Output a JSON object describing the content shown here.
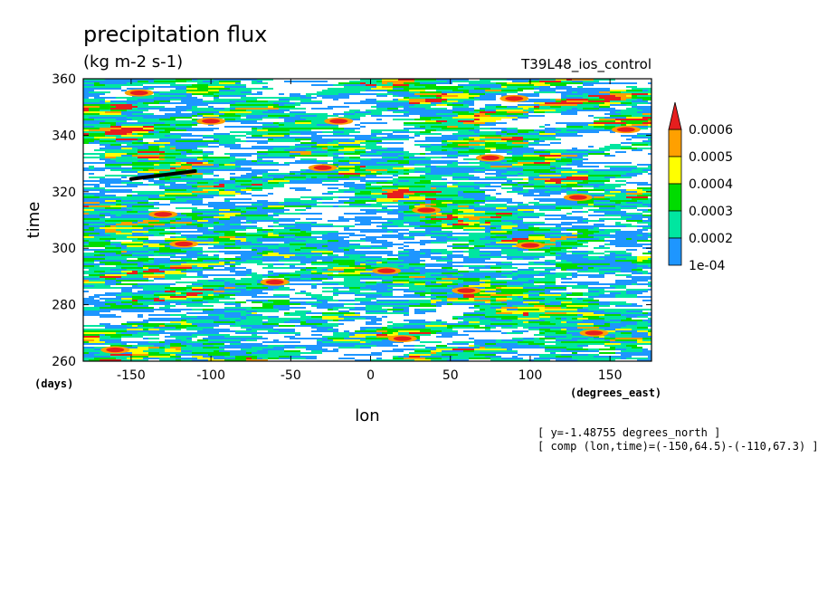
{
  "chart_data": {
    "type": "heatmap",
    "title": "precipitation flux",
    "units": "(kg m-2 s-1)",
    "run_label": "T39L48_ios_control",
    "xlabel": "lon",
    "xunit": "(degrees_east)",
    "ylabel": "time",
    "yunit": "(days)",
    "xlim": [
      -180,
      176
    ],
    "ylim": [
      260,
      360
    ],
    "x_ticks": [
      -150,
      -100,
      -50,
      0,
      50,
      100,
      150
    ],
    "y_ticks": [
      260,
      280,
      300,
      320,
      340,
      360
    ],
    "levels": [
      0.0001,
      0.0002,
      0.0003,
      0.0004,
      0.0005,
      0.0006
    ],
    "colorbar_labels": [
      "1e-04",
      "0.0002",
      "0.0003",
      "0.0004",
      "0.0005",
      "0.0006"
    ],
    "colors": [
      "#ffffff",
      "#1e96ff",
      "#00e6a0",
      "#00dc00",
      "#ffff00",
      "#ffa000",
      "#e61e1e"
    ],
    "composite_line": {
      "x": [
        -150,
        -110
      ],
      "y": [
        324.5,
        327.3
      ]
    },
    "hotspots": [
      {
        "x": 35,
        "y": 313.5
      },
      {
        "x": 100,
        "y": 301
      },
      {
        "x": -117,
        "y": 301.5
      },
      {
        "x": -30,
        "y": 328.5
      },
      {
        "x": 90,
        "y": 353
      },
      {
        "x": -145,
        "y": 355
      },
      {
        "x": -100,
        "y": 345
      },
      {
        "x": 130,
        "y": 318
      },
      {
        "x": 10,
        "y": 292
      },
      {
        "x": 60,
        "y": 285
      },
      {
        "x": -60,
        "y": 288
      },
      {
        "x": 140,
        "y": 270
      },
      {
        "x": -160,
        "y": 264
      },
      {
        "x": 75,
        "y": 332
      },
      {
        "x": -130,
        "y": 312
      },
      {
        "x": 160,
        "y": 342
      },
      {
        "x": -20,
        "y": 345
      },
      {
        "x": 20,
        "y": 268
      }
    ],
    "grid": false,
    "legend": "right"
  },
  "notes": [
    "[ y=-1.48755 degrees_north ]",
    "[ comp (lon,time)=(-150,64.5)-(-110,67.3) ]"
  ]
}
